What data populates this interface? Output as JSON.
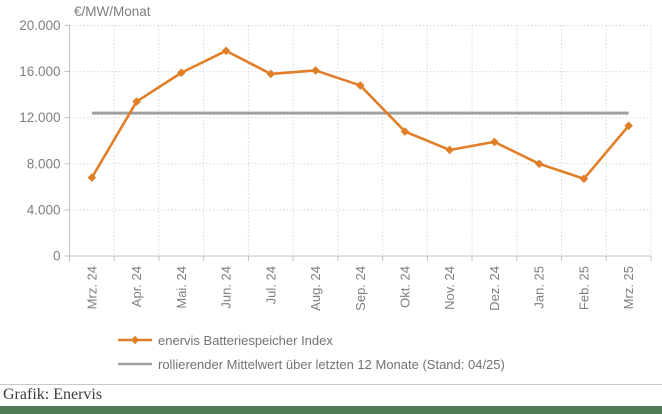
{
  "chart_data": {
    "type": "line",
    "title": "€/MW/Monat",
    "categories": [
      "Mrz. 24",
      "Apr. 24",
      "Mai. 24",
      "Jun. 24",
      "Jul. 24",
      "Aug. 24",
      "Sep. 24",
      "Okt. 24",
      "Nov. 24",
      "Dez. 24",
      "Jan. 25",
      "Feb. 25",
      "Mrz. 25"
    ],
    "series": [
      {
        "name": "enervis Batteriespeicher Index",
        "type": "line-markers",
        "marker": "diamond",
        "color": "#e07f28",
        "values": [
          6800,
          13400,
          15900,
          17800,
          15800,
          16100,
          14800,
          10800,
          9200,
          9900,
          8000,
          6700,
          11300
        ]
      },
      {
        "name": "rollierender Mittelwert über letzten 12 Monate (Stand: 04/25)",
        "type": "constant-line",
        "color": "#a0a0a0",
        "value": 12400
      }
    ],
    "ylim": [
      0,
      20000
    ],
    "ytick_step": 4000,
    "ytick_labels": [
      "0",
      "4.000",
      "8.000",
      "12.000",
      "16.000",
      "20.000"
    ],
    "grid": "dashed-both",
    "legend_position": "bottom-left"
  },
  "footer": {
    "credit": "Grafik: Enervis"
  },
  "colors": {
    "series_orange": "#e07f28",
    "mean_line_gray": "#a0a0a0",
    "gridline": "#d9d9d9",
    "axis_line": "#c0c0c0",
    "tick_text": "#7f7f7f",
    "legend_text": "#737373",
    "footer_text": "#3c3c3c",
    "footer_bar_green": "#4f7a55",
    "divider": "#c9c9c9"
  }
}
